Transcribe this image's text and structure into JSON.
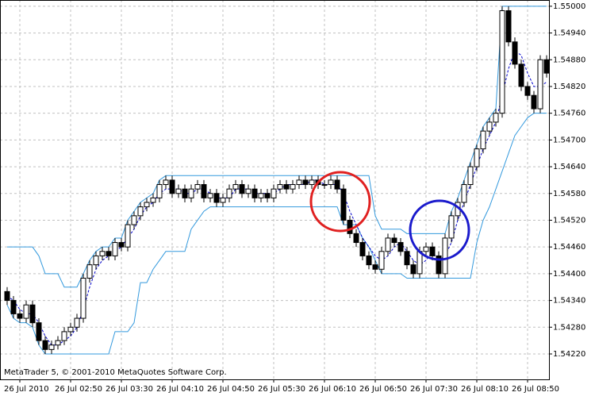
{
  "chart_data": {
    "type": "candlestick",
    "annotations": [
      "MetaTrader 5, © 2001-2010 MetaQuotes Software Corp."
    ],
    "categories": [
      null,
      null,
      "26 Jul 2010",
      null,
      null,
      null,
      null,
      null,
      null,
      null,
      "26 Jul 02:50",
      null,
      null,
      null,
      null,
      null,
      null,
      null,
      "26 Jul 03:30",
      null,
      null,
      null,
      null,
      null,
      null,
      null,
      "26 Jul 04:10",
      null,
      null,
      null,
      null,
      null,
      null,
      null,
      "26 Jul 04:50",
      null,
      null,
      null,
      null,
      null,
      null,
      null,
      "26 Jul 05:30",
      null,
      null,
      null,
      null,
      null,
      null,
      null,
      "26 Jul 06:10",
      null,
      null,
      null,
      null,
      null,
      null,
      null,
      "26 Jul 06:50",
      null,
      null,
      null,
      null,
      null,
      null,
      null,
      "26 Jul 07:30",
      null,
      null,
      null,
      null,
      null,
      null,
      null,
      "26 Jul 08:10",
      null,
      null,
      null,
      null,
      null,
      null,
      null,
      "26 Jul 08:50",
      null,
      null,
      null
    ],
    "open": [
      1.5436,
      1.5434,
      1.5431,
      1.543,
      1.5433,
      1.5429,
      1.5425,
      1.5423,
      1.5424,
      1.5425,
      1.5427,
      1.5428,
      1.543,
      1.5439,
      1.5442,
      1.5444,
      1.5445,
      1.5444,
      1.5447,
      1.5446,
      1.5451,
      1.5453,
      1.5455,
      1.5456,
      1.5457,
      1.546,
      1.5461,
      1.5458,
      1.5459,
      1.5457,
      1.5459,
      1.546,
      1.5457,
      1.5458,
      1.5456,
      1.5457,
      1.5459,
      1.546,
      1.5458,
      1.5459,
      1.5457,
      1.5458,
      1.5457,
      1.5459,
      1.546,
      1.5459,
      1.546,
      1.5461,
      1.546,
      1.5461,
      1.546,
      1.546,
      1.5461,
      1.5459,
      1.5452,
      1.5449,
      1.5447,
      1.5444,
      1.5442,
      1.5441,
      1.5445,
      1.5448,
      1.5447,
      1.5445,
      1.5442,
      1.544,
      1.5445,
      1.5446,
      1.5444,
      1.544,
      1.5448,
      1.5453,
      1.5456,
      1.546,
      1.5464,
      1.5468,
      1.5472,
      1.5474,
      1.5476,
      1.5499,
      1.5492,
      1.5487,
      1.5482,
      1.548,
      1.5477,
      1.5488
    ],
    "high": [
      1.5437,
      1.5435,
      1.5432,
      1.5434,
      1.5434,
      1.543,
      1.5426,
      1.5425,
      1.5426,
      1.5428,
      1.5429,
      1.5431,
      1.544,
      1.5443,
      1.5445,
      1.5446,
      1.5446,
      1.5448,
      1.5448,
      1.5452,
      1.5454,
      1.5456,
      1.5457,
      1.5458,
      1.5461,
      1.5462,
      1.5462,
      1.546,
      1.546,
      1.546,
      1.5461,
      1.5461,
      1.5459,
      1.5459,
      1.5458,
      1.546,
      1.5461,
      1.5461,
      1.546,
      1.546,
      1.5459,
      1.5459,
      1.546,
      1.5461,
      1.5461,
      1.5461,
      1.5462,
      1.5462,
      1.5462,
      1.5462,
      1.5461,
      1.5462,
      1.5462,
      1.546,
      1.5453,
      1.545,
      1.5448,
      1.5445,
      1.5443,
      1.5446,
      1.5449,
      1.5449,
      1.5448,
      1.5446,
      1.5443,
      1.5446,
      1.5447,
      1.5447,
      1.5445,
      1.5449,
      1.5454,
      1.5457,
      1.5461,
      1.5465,
      1.5469,
      1.5473,
      1.5475,
      1.5477,
      1.55,
      1.55,
      1.5493,
      1.5488,
      1.5483,
      1.5481,
      1.5489,
      1.5489
    ],
    "low": [
      1.5433,
      1.543,
      1.5429,
      1.5429,
      1.5428,
      1.5424,
      1.5422,
      1.5422,
      1.5423,
      1.5424,
      1.5426,
      1.5427,
      1.5429,
      1.5438,
      1.5441,
      1.5443,
      1.5443,
      1.5443,
      1.5445,
      1.5445,
      1.545,
      1.5452,
      1.5454,
      1.5455,
      1.5456,
      1.5459,
      1.5457,
      1.5457,
      1.5456,
      1.5456,
      1.5458,
      1.5456,
      1.5456,
      1.5455,
      1.5455,
      1.5456,
      1.5458,
      1.5457,
      1.5457,
      1.5456,
      1.5456,
      1.5456,
      1.5456,
      1.5458,
      1.5458,
      1.5458,
      1.5459,
      1.5459,
      1.5459,
      1.5459,
      1.5459,
      1.5459,
      1.5458,
      1.5451,
      1.5448,
      1.5446,
      1.5443,
      1.5441,
      1.544,
      1.544,
      1.5444,
      1.5446,
      1.5444,
      1.5441,
      1.5439,
      1.5439,
      1.5444,
      1.5443,
      1.5439,
      1.5439,
      1.5447,
      1.5452,
      1.5455,
      1.5459,
      1.5463,
      1.5467,
      1.5471,
      1.5473,
      1.5475,
      1.5491,
      1.5486,
      1.5481,
      1.5479,
      1.5476,
      1.5476,
      1.5484
    ],
    "close": [
      1.5434,
      1.5431,
      1.543,
      1.5433,
      1.5429,
      1.5425,
      1.5423,
      1.5424,
      1.5425,
      1.5427,
      1.5428,
      1.543,
      1.5439,
      1.5442,
      1.5444,
      1.5445,
      1.5444,
      1.5447,
      1.5446,
      1.5451,
      1.5453,
      1.5455,
      1.5456,
      1.5457,
      1.546,
      1.5461,
      1.5458,
      1.5459,
      1.5457,
      1.5459,
      1.546,
      1.5457,
      1.5458,
      1.5456,
      1.5457,
      1.5459,
      1.546,
      1.5458,
      1.5459,
      1.5457,
      1.5458,
      1.5457,
      1.5459,
      1.546,
      1.5459,
      1.546,
      1.5461,
      1.546,
      1.5461,
      1.546,
      1.546,
      1.5461,
      1.5459,
      1.5452,
      1.5449,
      1.5447,
      1.5444,
      1.5442,
      1.5441,
      1.5445,
      1.5448,
      1.5447,
      1.5445,
      1.5442,
      1.544,
      1.5445,
      1.5446,
      1.5444,
      1.544,
      1.5448,
      1.5453,
      1.5456,
      1.546,
      1.5464,
      1.5468,
      1.5472,
      1.5474,
      1.5476,
      1.5499,
      1.5492,
      1.5487,
      1.5482,
      1.548,
      1.5477,
      1.5488,
      1.5485
    ],
    "color_up": "#ffffff",
    "color_down": "#000000",
    "series": [
      {
        "color": "#3399dd",
        "dash": false,
        "values": [
          1.5446,
          1.5446,
          1.5446,
          1.5446,
          1.5446,
          1.5444,
          1.544,
          1.544,
          1.544,
          1.5437,
          1.5437,
          1.5437,
          1.544,
          1.5443,
          1.5445,
          1.5446,
          1.5446,
          1.5448,
          1.5448,
          1.5452,
          1.5454,
          1.5456,
          1.5457,
          1.5458,
          1.5461,
          1.5462,
          1.5462,
          1.5462,
          1.5462,
          1.5462,
          1.5462,
          1.5462,
          1.5462,
          1.5462,
          1.5462,
          1.5462,
          1.5462,
          1.5462,
          1.5462,
          1.5462,
          1.5462,
          1.5462,
          1.5462,
          1.5462,
          1.5462,
          1.5462,
          1.5462,
          1.5462,
          1.5462,
          1.5462,
          1.5462,
          1.5462,
          1.5462,
          1.5462,
          1.5462,
          1.5462,
          1.5462,
          1.5462,
          1.5453,
          1.545,
          1.545,
          1.545,
          1.545,
          1.5449,
          1.5449,
          1.5449,
          1.5449,
          1.5449,
          1.5449,
          1.5449,
          1.5454,
          1.5457,
          1.5461,
          1.5465,
          1.5469,
          1.5473,
          1.5475,
          1.5477,
          1.55,
          1.55,
          1.55,
          1.55,
          1.55,
          1.55,
          1.55,
          1.55
        ]
      },
      {
        "color": "#3399dd",
        "dash": false,
        "values": [
          1.5433,
          1.543,
          1.5429,
          1.5429,
          1.5428,
          1.5424,
          1.5422,
          1.5422,
          1.5422,
          1.5422,
          1.5422,
          1.5422,
          1.5422,
          1.5422,
          1.5422,
          1.5422,
          1.5422,
          1.5427,
          1.5427,
          1.5427,
          1.5429,
          1.5438,
          1.5438,
          1.5441,
          1.5443,
          1.5445,
          1.5445,
          1.5445,
          1.5445,
          1.545,
          1.5452,
          1.5454,
          1.5455,
          1.5455,
          1.5455,
          1.5455,
          1.5455,
          1.5455,
          1.5455,
          1.5455,
          1.5455,
          1.5455,
          1.5455,
          1.5455,
          1.5455,
          1.5455,
          1.5455,
          1.5455,
          1.5455,
          1.5455,
          1.5455,
          1.5455,
          1.5455,
          1.5451,
          1.5451,
          1.5451,
          1.5448,
          1.5446,
          1.5443,
          1.544,
          1.544,
          1.544,
          1.544,
          1.5439,
          1.5439,
          1.5439,
          1.5439,
          1.5439,
          1.5439,
          1.5439,
          1.5439,
          1.5439,
          1.5439,
          1.5439,
          1.5447,
          1.5452,
          1.5455,
          1.5459,
          1.5463,
          1.5467,
          1.5471,
          1.5473,
          1.5475,
          1.5476,
          1.5476,
          1.5476
        ]
      },
      {
        "color": "#0000cc",
        "dash": true,
        "values": [
          1.5435,
          1.5434,
          1.5432,
          1.5431,
          1.5431,
          1.5429,
          1.5426,
          1.5424,
          1.5424,
          1.5425,
          1.5426,
          1.5428,
          1.5432,
          1.5437,
          1.5441,
          1.5443,
          1.5444,
          1.5445,
          1.5446,
          1.5448,
          1.545,
          1.5453,
          1.5455,
          1.5456,
          1.5458,
          1.5459,
          1.5459,
          1.5459,
          1.5458,
          1.5458,
          1.5459,
          1.5459,
          1.5458,
          1.5457,
          1.5457,
          1.5457,
          1.5459,
          1.5459,
          1.5459,
          1.5458,
          1.5458,
          1.5458,
          1.5458,
          1.5459,
          1.546,
          1.546,
          1.546,
          1.546,
          1.5461,
          1.5461,
          1.546,
          1.546,
          1.546,
          1.5458,
          1.5454,
          1.5451,
          1.5448,
          1.5446,
          1.5444,
          1.5443,
          1.5444,
          1.5446,
          1.5447,
          1.5445,
          1.5443,
          1.5442,
          1.5443,
          1.5445,
          1.5443,
          1.5444,
          1.5447,
          1.5452,
          1.5456,
          1.546,
          1.5464,
          1.5468,
          1.5471,
          1.5474,
          1.548,
          1.5486,
          1.549,
          1.5489,
          1.5485,
          1.5482,
          1.5482,
          1.5483
        ]
      }
    ],
    "ylim": [
      1.54163,
      1.55014
    ],
    "yticks": [
      {
        "value": 1.5422,
        "label": "1.54220"
      },
      {
        "value": 1.5428,
        "label": "1.54280"
      },
      {
        "value": 1.5434,
        "label": "1.54340"
      },
      {
        "value": 1.544,
        "label": "1.54400"
      },
      {
        "value": 1.5446,
        "label": "1.54460"
      },
      {
        "value": 1.5452,
        "label": "1.54520"
      },
      {
        "value": 1.5458,
        "label": "1.54580"
      },
      {
        "value": 1.5464,
        "label": "1.54640"
      },
      {
        "value": 1.547,
        "label": "1.54700"
      },
      {
        "value": 1.5476,
        "label": "1.54760"
      },
      {
        "value": 1.5482,
        "label": "1.54820"
      },
      {
        "value": 1.5488,
        "label": "1.54880"
      },
      {
        "value": 1.5494,
        "label": "1.54940"
      },
      {
        "value": 1.55,
        "label": "1.55000"
      }
    ],
    "grid": true
  }
}
